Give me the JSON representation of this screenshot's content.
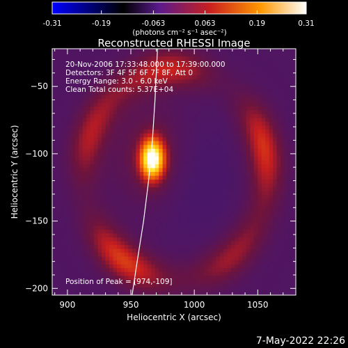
{
  "colorbar": {
    "ticks": [
      "-0.31",
      "-0.19",
      "-0.063",
      "0.063",
      "0.19",
      "0.31"
    ],
    "unit_label": "(photons cm⁻² s⁻¹ asec⁻²)",
    "range": [
      -0.31,
      0.31
    ],
    "colors": [
      "#0000ff",
      "#000000",
      "#5a1a8c",
      "#c81f1f",
      "#ff9800",
      "#ffffff"
    ]
  },
  "chart_data": {
    "type": "heatmap",
    "title": "Reconstructed RHESSI Image",
    "xlabel": "Heliocentric X (arcsec)",
    "ylabel": "Heliocentric Y (arcsec)",
    "xlim": [
      888,
      1080
    ],
    "ylim": [
      -205,
      -22
    ],
    "xticks": [
      900,
      950,
      1000,
      1050
    ],
    "yticks": [
      -50,
      -100,
      -150,
      -200
    ],
    "annotations": [
      "20-Nov-2006 17:33:48.000 to 17:39:00.000",
      "Detectors: 3F 4F 5F 6F 7F 8F, Att 0",
      "Energy Range: 3.0 - 6.0 keV",
      "Clean     Total counts: 5.37E+04"
    ],
    "peak_label": "Position of Peak = [974,-109]",
    "peak": [
      974,
      -109
    ],
    "peak_value": 0.31,
    "limb_curve": [
      [
        951,
        -205
      ],
      [
        955,
        -180
      ],
      [
        960,
        -150
      ],
      [
        964,
        -120
      ],
      [
        967,
        -90
      ],
      [
        969,
        -60
      ],
      [
        971,
        -22
      ]
    ],
    "source_core": {
      "center": [
        967,
        -104
      ],
      "sigma_x": 7,
      "sigma_y": 11,
      "value": 0.31
    },
    "ring": {
      "center": [
        985,
        -115
      ],
      "rx": 72,
      "ry": 78,
      "value": 0.14
    },
    "background": -0.02
  },
  "timestamp": "7-May-2022 22:26"
}
